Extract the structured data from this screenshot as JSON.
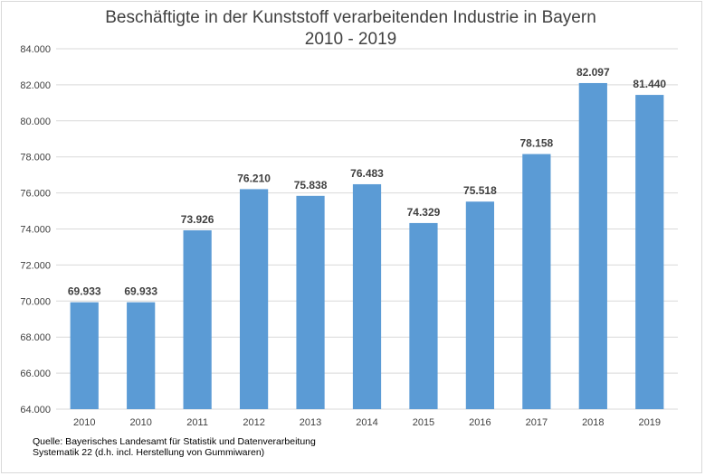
{
  "chart_data": {
    "type": "bar",
    "title": "Beschäftigte in der Kunststoff verarbeitenden Industrie in Bayern",
    "subtitle": "2010 - 2019",
    "xlabel": "",
    "ylabel": "",
    "categories": [
      "2010",
      "2010",
      "2011",
      "2012",
      "2013",
      "2014",
      "2015",
      "2016",
      "2017",
      "2018",
      "2019"
    ],
    "values": [
      69933,
      69933,
      73926,
      76210,
      75838,
      76483,
      74329,
      75518,
      78158,
      82097,
      81440
    ],
    "value_labels": [
      "69.933",
      "69.933",
      "73.926",
      "76.210",
      "75.838",
      "76.483",
      "74.329",
      "75.518",
      "78.158",
      "82.097",
      "81.440"
    ],
    "ylim": [
      64000,
      84000
    ],
    "yticks": [
      64000,
      66000,
      68000,
      70000,
      72000,
      74000,
      76000,
      78000,
      80000,
      82000,
      84000
    ],
    "ytick_labels": [
      "64.000",
      "66.000",
      "68.000",
      "70.000",
      "72.000",
      "74.000",
      "76.000",
      "78.000",
      "80.000",
      "82.000",
      "84.000"
    ],
    "grid": true,
    "bar_color": "#5b9bd5",
    "grid_color": "#d9d9d9",
    "source_line1": "Quelle:   Bayerisches Landesamt für Statistik und Datenverarbeitung",
    "source_line2": "Systematik 22 (d.h. incl. Herstellung von Gummiwaren)"
  }
}
